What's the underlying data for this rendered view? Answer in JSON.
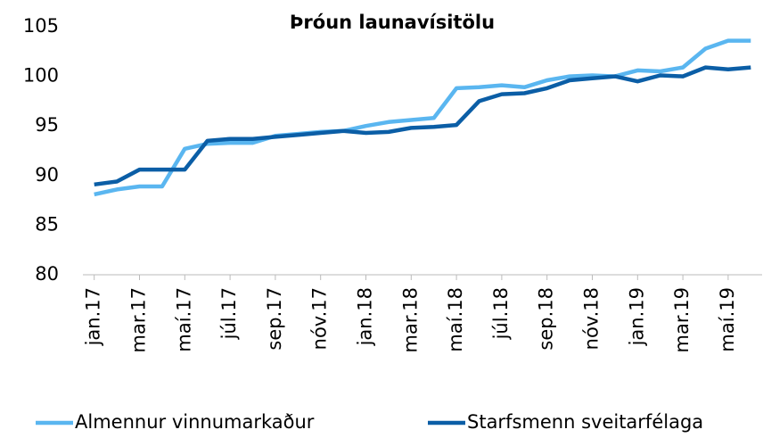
{
  "chart_data": {
    "type": "line",
    "title": "Þróun launavísitölu",
    "categories": [
      "jan.17",
      null,
      "mar.17",
      null,
      "maí.17",
      null,
      "júl.17",
      null,
      "sep.17",
      null,
      "nóv.17",
      null,
      "jan.18",
      null,
      "mar.18",
      null,
      "maí.18",
      null,
      "júl.18",
      null,
      "sep.18",
      null,
      "nóv.18",
      null,
      "jan.19",
      null,
      "mar.19",
      null,
      "maí.19",
      null
    ],
    "series": [
      {
        "name": "Almennur vinnumarkaður",
        "color": "#5ab6f0",
        "values": [
          88.1,
          88.6,
          88.9,
          88.9,
          92.7,
          93.2,
          93.3,
          93.3,
          94.0,
          94.2,
          94.4,
          94.5,
          95.0,
          95.4,
          95.6,
          95.8,
          98.8,
          98.9,
          99.1,
          98.9,
          99.6,
          100.0,
          100.1,
          100.0,
          100.6,
          100.5,
          100.9,
          102.8,
          103.6,
          103.6
        ]
      },
      {
        "name": "Starfsmenn sveitarfélaga",
        "color": "#0b5ea6",
        "values": [
          89.1,
          89.4,
          90.6,
          90.6,
          90.6,
          93.5,
          93.7,
          93.7,
          93.9,
          94.1,
          94.3,
          94.5,
          94.3,
          94.4,
          94.8,
          94.9,
          95.1,
          97.5,
          98.2,
          98.3,
          98.8,
          99.6,
          99.8,
          100.0,
          99.5,
          100.1,
          100.0,
          100.9,
          100.7,
          100.9
        ]
      }
    ],
    "ylim": [
      80,
      105
    ],
    "yticks": [
      80,
      85,
      90,
      95,
      100,
      105
    ],
    "grid": false,
    "legend": "bottom"
  }
}
